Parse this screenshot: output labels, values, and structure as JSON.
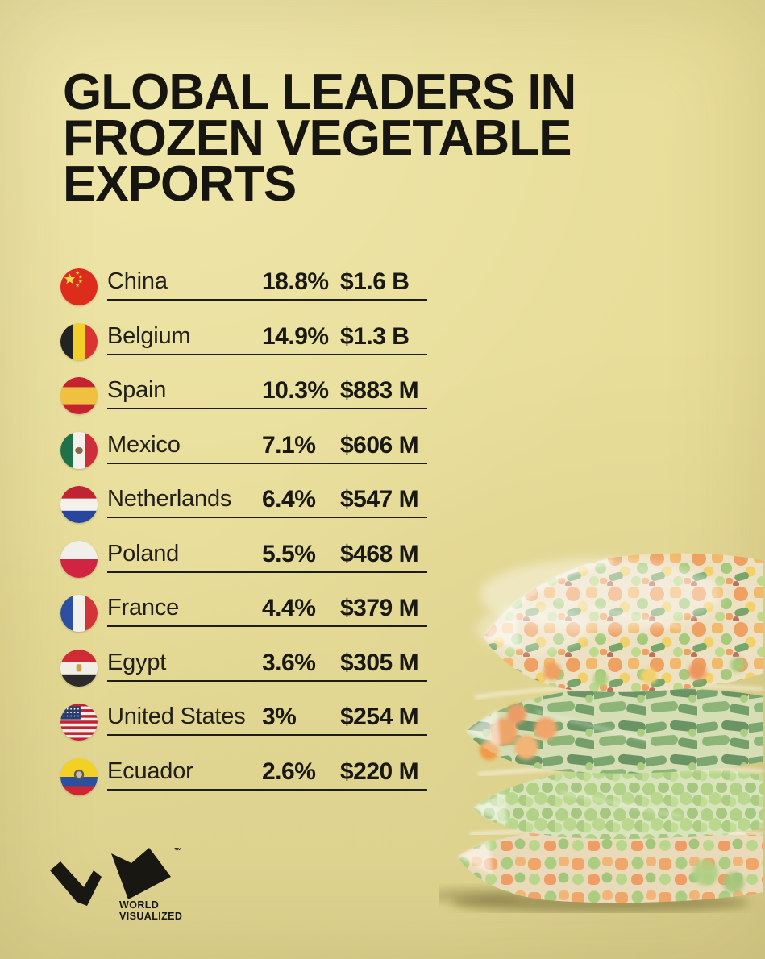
{
  "canvas": {
    "background": "#e8dd99",
    "text_color": "#16150f",
    "rule_color": "#1d1c15"
  },
  "title": {
    "lines": [
      "GLOBAL LEADERS IN",
      "FROZEN VEGETABLE",
      "EXPORTS"
    ]
  },
  "table": {
    "rows": [
      {
        "country": "China",
        "share": "18.8%",
        "value": "$1.6 B",
        "flag": "china",
        "flag_icon": "flag-china-icon"
      },
      {
        "country": "Belgium",
        "share": "14.9%",
        "value": "$1.3 B",
        "flag": "belgium",
        "flag_icon": "flag-belgium-icon"
      },
      {
        "country": "Spain",
        "share": "10.3%",
        "value": "$883 M",
        "flag": "spain",
        "flag_icon": "flag-spain-icon"
      },
      {
        "country": "Mexico",
        "share": "7.1%",
        "value": "$606 M",
        "flag": "mexico",
        "flag_icon": "flag-mexico-icon"
      },
      {
        "country": "Netherlands",
        "share": "6.4%",
        "value": "$547 M",
        "flag": "netherlands",
        "flag_icon": "flag-netherlands-icon"
      },
      {
        "country": "Poland",
        "share": "5.5%",
        "value": "$468 M",
        "flag": "poland",
        "flag_icon": "flag-poland-icon"
      },
      {
        "country": "France",
        "share": "4.4%",
        "value": "$379 M",
        "flag": "france",
        "flag_icon": "flag-france-icon"
      },
      {
        "country": "Egypt",
        "share": "3.6%",
        "value": "$305 M",
        "flag": "egypt",
        "flag_icon": "flag-egypt-icon"
      },
      {
        "country": "United States",
        "share": "3%",
        "value": "$254 M",
        "flag": "united-states",
        "flag_icon": "flag-united-states-icon"
      },
      {
        "country": "Ecuador",
        "share": "2.6%",
        "value": "$220 M",
        "flag": "ecuador",
        "flag_icon": "flag-ecuador-icon"
      }
    ]
  },
  "flags": {
    "china": {
      "type": "solid",
      "base": "#dd2b1c",
      "star_color": "#f9d949"
    },
    "belgium": {
      "type": "vertical",
      "stripes": [
        "#232323",
        "#f3cf2c",
        "#d93430"
      ]
    },
    "spain": {
      "type": "horizontal",
      "stripes": [
        "#c62330",
        "#f0c040",
        "#c62330"
      ],
      "weights": [
        27,
        46,
        27
      ]
    },
    "mexico": {
      "type": "vertical",
      "stripes": [
        "#20714a",
        "#f3f1ea",
        "#ce2d3c"
      ],
      "emblem_color": "#8a6843"
    },
    "netherlands": {
      "type": "horizontal",
      "stripes": [
        "#c22334",
        "#f3f1ea",
        "#27479e"
      ],
      "weights": [
        34,
        33,
        33
      ]
    },
    "poland": {
      "type": "horizontal",
      "stripes": [
        "#f1efe9",
        "#d02442"
      ],
      "weights": [
        50,
        50
      ]
    },
    "france": {
      "type": "vertical",
      "stripes": [
        "#2c4fa2",
        "#f3f1ea",
        "#d2343a"
      ]
    },
    "egypt": {
      "type": "horizontal",
      "stripes": [
        "#ce2b35",
        "#f1eee6",
        "#2b2b2b"
      ],
      "weights": [
        34,
        33,
        33
      ],
      "emblem_color": "#c9a24a"
    },
    "united-states": {
      "type": "usa",
      "red": "#c22234",
      "white": "#f1efe9",
      "blue": "#2b3c6e"
    },
    "ecuador": {
      "type": "horizontal",
      "stripes": [
        "#f2d024",
        "#2c4fa0",
        "#d2242e"
      ],
      "weights": [
        50,
        25,
        25
      ],
      "emblem_color": "#6b5a3a",
      "emblem_center": "#b9c4c2"
    }
  },
  "footer": {
    "logo_mark_icon": "world-visualized-monogram-icon",
    "trademark": "™",
    "brand_lines": [
      "WORLD",
      "VISUALIZED"
    ],
    "logo_color": "#181712"
  },
  "illustration": {
    "icon": "frozen-vegetable-bags-photo",
    "colors": {
      "carrot": "#ec8330",
      "corn": "#f0c33c",
      "pea": "#8fc055",
      "bean": "#3c7a33",
      "frost": "#f8f6ee"
    }
  },
  "chart_data": {
    "type": "table",
    "title": "GLOBAL LEADERS IN FROZEN VEGETABLE EXPORTS",
    "categories": [
      "China",
      "Belgium",
      "Spain",
      "Mexico",
      "Netherlands",
      "Poland",
      "France",
      "Egypt",
      "United States",
      "Ecuador"
    ],
    "series": [
      {
        "name": "share_of_global_exports_percent",
        "values": [
          18.8,
          14.9,
          10.3,
          7.1,
          6.4,
          5.5,
          4.4,
          3.6,
          3,
          2.6
        ]
      },
      {
        "name": "export_value",
        "values": [
          "$1.6 B",
          "$1.3 B",
          "$883 M",
          "$606 M",
          "$547 M",
          "$468 M",
          "$379 M",
          "$305 M",
          "$254 M",
          "$220 M"
        ]
      }
    ],
    "legend_position": "none",
    "grid": false
  }
}
